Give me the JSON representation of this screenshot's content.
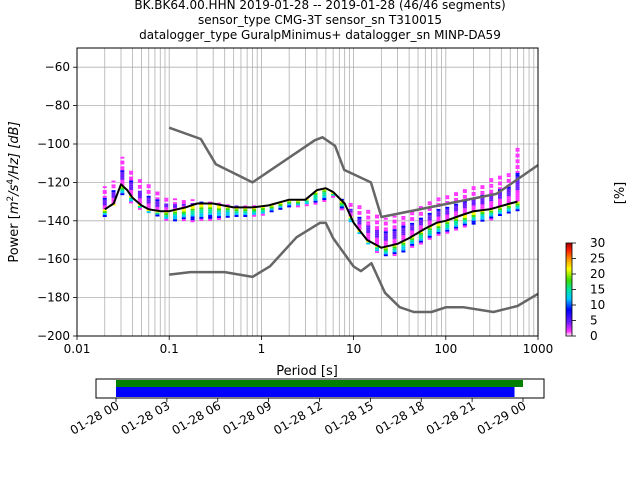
{
  "chart_data": [
    {
      "type": "heatmap",
      "title_lines": [
        "BK.BK64.00.HHN   2019-01-28 -- 2019-01-28  (46/46 segments)",
        "sensor_type CMG-3T sensor_sn T310015",
        "datalogger_type GuralpMinimus+ datalogger_sn MINP-DA59"
      ],
      "xlabel": "Period [s]",
      "ylabel": "Power [m²/s⁴/Hz] [dB]",
      "ylabel_parts": {
        "pre": "Power [",
        "m": "m",
        "sup2": "2",
        "slash_s": "/s",
        "sup4": "4",
        "hz": "/Hz] [dB]"
      },
      "xscale": "log",
      "xlim": [
        0.01,
        1000
      ],
      "ylim": [
        -200,
        -50
      ],
      "xticks": [
        0.01,
        0.1,
        1,
        10,
        100,
        1000
      ],
      "xtick_labels": [
        "0.01",
        "0.1",
        "1",
        "10",
        "100",
        "1000"
      ],
      "yticks": [
        -200,
        -180,
        -160,
        -140,
        -120,
        -100,
        -80,
        -60
      ],
      "ytick_labels": [
        "−200",
        "−180",
        "−160",
        "−140",
        "−120",
        "−100",
        "−80",
        "−60"
      ],
      "grid": true,
      "colorbar": {
        "label": "[%]",
        "range": [
          0,
          30
        ],
        "ticks": [
          0,
          5,
          10,
          15,
          20,
          25,
          30
        ],
        "tick_labels": [
          "0",
          "5",
          "10",
          "15",
          "20",
          "25",
          "30"
        ],
        "colors": [
          "#ffffff",
          "#ff33ff",
          "#6a1bff",
          "#0000ff",
          "#00c8ff",
          "#00e6a0",
          "#3cdc00",
          "#ffff00",
          "#ff9a00",
          "#ff1e00",
          "#a00000"
        ]
      },
      "noise_models": {
        "color": "#666666",
        "high": {
          "name": "NHNM",
          "x": [
            0.1,
            0.22,
            0.32,
            0.8,
            3.8,
            4.6,
            6.3,
            7.9,
            15.4,
            20,
            354,
            1000
          ],
          "y": [
            -91.5,
            -97.4,
            -110.5,
            -120,
            -98,
            -96.5,
            -101,
            -113.5,
            -120,
            -138,
            -126,
            -111
          ]
        },
        "low": {
          "name": "NLNM",
          "x": [
            0.1,
            0.17,
            0.4,
            0.8,
            1.24,
            2.4,
            4.3,
            5.0,
            6.0,
            10,
            12,
            15.6,
            21.9,
            31.6,
            45,
            70,
            101,
            154,
            328,
            600,
            1000
          ],
          "y": [
            -168,
            -166.7,
            -166.7,
            -169.2,
            -163.7,
            -148.6,
            -141.1,
            -141.1,
            -149,
            -163.8,
            -166.2,
            -162.1,
            -177.5,
            -185,
            -187.5,
            -187.5,
            -185,
            -185,
            -187.5,
            -184.4,
            -178
          ]
        }
      },
      "mode_line": {
        "color": "#000000",
        "x": [
          0.02,
          0.025,
          0.03,
          0.035,
          0.04,
          0.05,
          0.06,
          0.08,
          0.1,
          0.15,
          0.2,
          0.3,
          0.5,
          0.8,
          1.2,
          2,
          3,
          4,
          5,
          6,
          8,
          10,
          14,
          20,
          30,
          40,
          60,
          80,
          100,
          150,
          200,
          300,
          500,
          600
        ],
        "y": [
          -134,
          -131,
          -121,
          -124,
          -128,
          -132,
          -134,
          -135,
          -135,
          -133,
          -131,
          -131,
          -133,
          -133,
          -132,
          -129,
          -129,
          -124,
          -123,
          -125,
          -131,
          -141,
          -150,
          -154,
          -152,
          -149,
          -144,
          -141,
          -140,
          -137,
          -135,
          -134,
          -131,
          -130
        ]
      },
      "high_tail_line": {
        "color": "#ff33ff",
        "x": [
          0.02,
          0.025,
          0.03,
          0.035,
          0.05,
          0.08,
          0.1,
          0.15,
          0.3,
          1,
          2,
          3,
          5,
          8,
          12,
          20,
          40,
          80,
          150,
          300,
          500,
          600
        ],
        "y": [
          -122,
          -118,
          -105,
          -110,
          -118,
          -124,
          -127,
          -128,
          -130,
          -132,
          -130,
          -128,
          -125,
          -128,
          -132,
          -138,
          -135,
          -128,
          -124,
          -118,
          -114,
          -102
        ]
      },
      "low_tail_line": {
        "color": "#ff33ff",
        "x": [
          0.02,
          0.03,
          0.05,
          0.1,
          0.2,
          0.5,
          1,
          2,
          4,
          6,
          10,
          15,
          20,
          30,
          50,
          100,
          200,
          400,
          600
        ],
        "y": [
          -138,
          -126,
          -134,
          -140,
          -140,
          -138,
          -137,
          -133,
          -131,
          -127,
          -143,
          -153,
          -158,
          -158,
          -152,
          -146,
          -142,
          -137,
          -135
        ]
      }
    },
    {
      "type": "bar",
      "title": "",
      "xlabel": "",
      "xlim": [
        "2019-01-28 00:00",
        "2019-01-29 02:00"
      ],
      "tick_values": [
        "2019-01-28 00:00",
        "2019-01-28 03:00",
        "2019-01-28 06:00",
        "2019-01-28 09:00",
        "2019-01-28 12:00",
        "2019-01-28 15:00",
        "2019-01-28 18:00",
        "2019-01-28 21:00",
        "2019-01-29 00:00"
      ],
      "tick_labels": [
        "01-28 00",
        "01-28 03",
        "01-28 06",
        "01-28 09",
        "01-28 12",
        "01-28 15",
        "01-28 18",
        "01-28 21",
        "01-29 00"
      ],
      "series": [
        {
          "color": "#008000",
          "start": "2019-01-28 00:00",
          "end": "2019-01-29 00:00"
        },
        {
          "color": "#0000ff",
          "start": "2019-01-28 00:00",
          "end": "2019-01-28 23:30"
        }
      ]
    }
  ]
}
